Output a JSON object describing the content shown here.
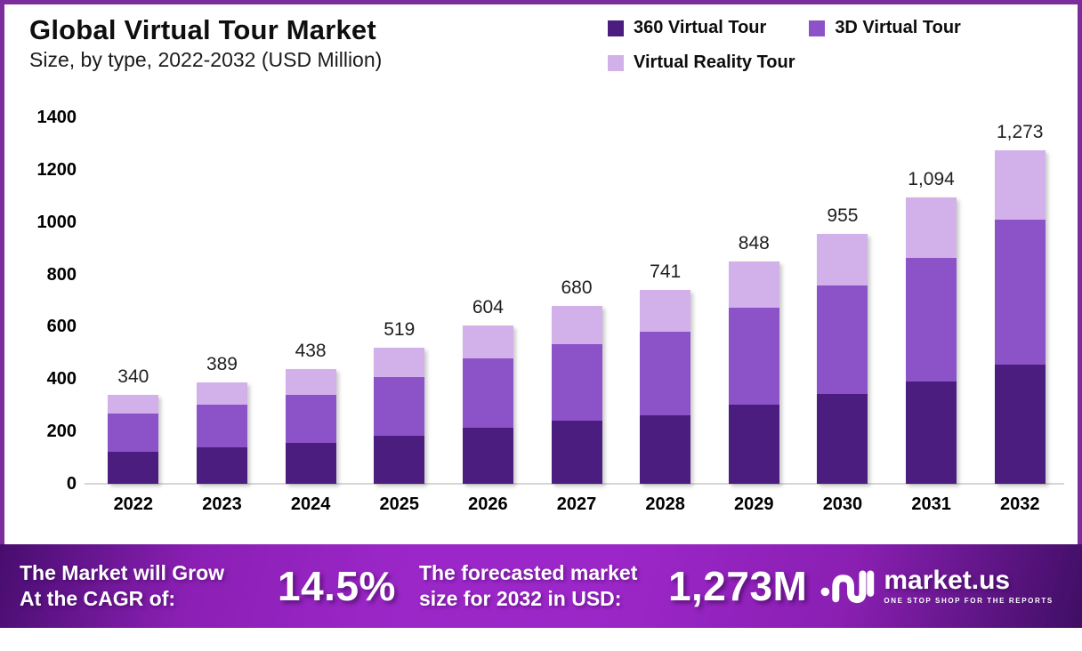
{
  "header": {
    "title": "Global Virtual Tour Market",
    "subtitle": "Size, by type, 2022-2032 (USD Million)"
  },
  "chart_data": {
    "type": "bar",
    "stacked": true,
    "title": "Global Virtual Tour Market Size, by type, 2022-2032 (USD Million)",
    "categories": [
      "2022",
      "2023",
      "2024",
      "2025",
      "2026",
      "2027",
      "2028",
      "2029",
      "2030",
      "2031",
      "2032"
    ],
    "series": [
      {
        "name": "360 Virtual Tour",
        "color": "#4a1d7f",
        "values": [
          121,
          140,
          157,
          182,
          215,
          240,
          263,
          301,
          345,
          390,
          456
        ]
      },
      {
        "name": "3D Virtual Tour",
        "color": "#8c52c8",
        "values": [
          146,
          164,
          184,
          225,
          265,
          294,
          319,
          372,
          412,
          474,
          552
        ]
      },
      {
        "name": "Virtual Reality Tour",
        "color": "#d2b1ea",
        "values": [
          73,
          85,
          97,
          112,
          124,
          146,
          159,
          175,
          198,
          230,
          265
        ]
      }
    ],
    "totals": [
      340,
      389,
      438,
      519,
      604,
      680,
      741,
      848,
      955,
      1094,
      1273
    ],
    "total_labels": [
      "340",
      "389",
      "438",
      "519",
      "604",
      "680",
      "741",
      "848",
      "955",
      "1,094",
      "1,273"
    ],
    "xlabel": "",
    "ylabel": "",
    "ylim": [
      0,
      1400
    ],
    "yticks": [
      0,
      200,
      400,
      600,
      800,
      1000,
      1200,
      1400
    ],
    "grid": false,
    "legend_position": "top-right"
  },
  "footer": {
    "cagr_label_line1": "The Market will Grow",
    "cagr_label_line2": "At the CAGR of:",
    "cagr_value": "14.5%",
    "forecast_label_line1": "The forecasted market",
    "forecast_label_line2": "size for 2032 in USD:",
    "forecast_value": "1,273M",
    "brand": {
      "name": "market.us",
      "tagline": "ONE STOP SHOP FOR THE REPORTS"
    }
  },
  "colors": {
    "frame_border": "#7b2d9b",
    "banner_gradient": [
      "#470d6e",
      "#9c27c9",
      "#3f0e64"
    ],
    "series_360": "#4a1d7f",
    "series_3d": "#8c52c8",
    "series_vr": "#d2b1ea",
    "baseline": "#d6d6d6"
  }
}
